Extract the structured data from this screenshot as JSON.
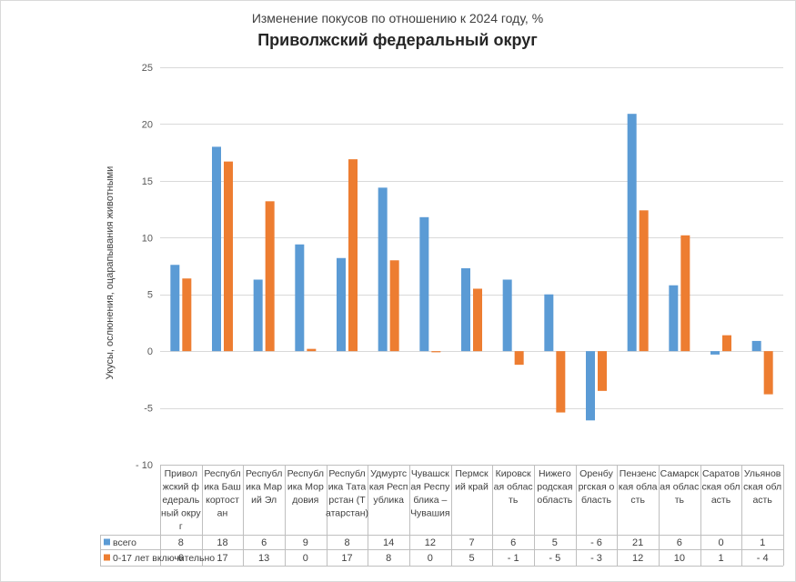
{
  "chart_data": {
    "type": "bar",
    "subtitle": "Изменение покусов по отношению к 2024 году, %",
    "title": "Приволжский федеральный округ",
    "ylabel": "Укусы, ослюнения, оцарапывания животными",
    "ylim": [
      -10,
      25
    ],
    "yticks": [
      "25",
      "20",
      "15",
      "10",
      "5",
      "0",
      "-5",
      "- 10"
    ],
    "ytick_values": [
      25,
      20,
      15,
      10,
      5,
      0,
      -5,
      -10
    ],
    "grid": true,
    "legend_position": "bottom (data table)",
    "categories": [
      [
        "Привол",
        "жский ф",
        "едераль",
        "ный окру",
        "г"
      ],
      [
        "Республ",
        "ика Баш",
        "кортост",
        "ан"
      ],
      [
        "Республ",
        "ика Мар",
        "ий Эл"
      ],
      [
        "Республ",
        "ика Мор",
        "довия"
      ],
      [
        "Республ",
        "ика Тата",
        "рстан (Т",
        "атарстан)"
      ],
      [
        "Удмуртс",
        "кая Респ",
        "ублика"
      ],
      [
        "Чувашск",
        "ая Респу",
        "блика –",
        "Чувашия"
      ],
      [
        "Пермск",
        "ий край"
      ],
      [
        "Кировск",
        "ая облас",
        "ть"
      ],
      [
        "Нижего",
        "родская",
        "область"
      ],
      [
        "Оренбу",
        "ргская о",
        "бласть"
      ],
      [
        "Пензенс",
        "кая обла",
        "сть"
      ],
      [
        "Самарск",
        "ая облас",
        "ть"
      ],
      [
        "Саратов",
        "ская обл",
        "асть"
      ],
      [
        "Ульянов",
        "ская обл",
        "асть"
      ]
    ],
    "series": [
      {
        "name": "всего",
        "color": "#5b9bd5",
        "values": [
          7.6,
          18.0,
          6.3,
          9.4,
          8.2,
          14.4,
          11.8,
          7.3,
          6.3,
          5.0,
          -6.1,
          20.9,
          5.8,
          -0.3,
          0.9
        ],
        "table_values": [
          "8",
          "18",
          "6",
          "9",
          "8",
          "14",
          "12",
          "7",
          "6",
          "5",
          "- 6",
          "21",
          "6",
          "0",
          "1"
        ]
      },
      {
        "name": "0-17 лет включительно",
        "color": "#ed7d31",
        "values": [
          6.4,
          16.7,
          13.2,
          0.2,
          16.9,
          8.0,
          -0.1,
          5.5,
          -1.2,
          -5.4,
          -3.5,
          12.4,
          10.2,
          1.4,
          -3.8
        ],
        "table_values": [
          "6",
          "17",
          "13",
          "0",
          "17",
          "8",
          "0",
          "5",
          "- 1",
          "- 5",
          "- 3",
          "12",
          "10",
          "1",
          "- 4"
        ]
      }
    ]
  }
}
